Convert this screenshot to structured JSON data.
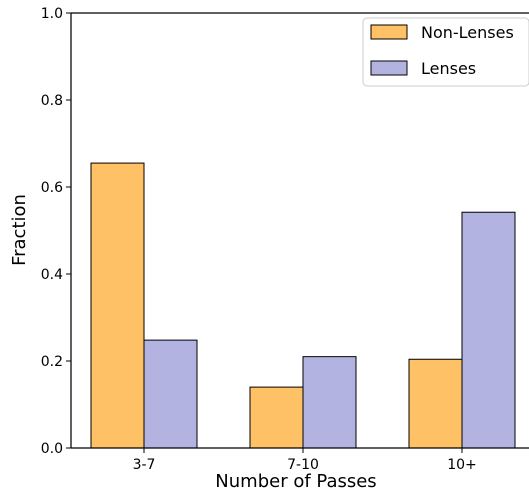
{
  "chart_data": {
    "type": "bar",
    "title": "",
    "xlabel": "Number of Passes",
    "ylabel": "Fraction",
    "categories": [
      "3-7",
      "7-10",
      "10+"
    ],
    "ylim": [
      0,
      1.0
    ],
    "yticks": [
      "0.0",
      "0.2",
      "0.4",
      "0.6",
      "0.8",
      "1.0"
    ],
    "series": [
      {
        "name": "Non-Lenses",
        "values": [
          0.655,
          0.14,
          0.204
        ],
        "color": "#fec166"
      },
      {
        "name": "Lenses",
        "values": [
          0.248,
          0.21,
          0.542
        ],
        "color": "#b3b3e2"
      }
    ],
    "legend_position": "top-right",
    "grid": false
  }
}
